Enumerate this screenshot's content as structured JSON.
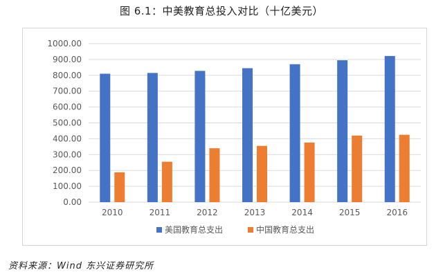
{
  "figure_title": "图 6.1：中美教育总投入对比（十亿美元）",
  "source_note": "资料来源：Wind 东兴证券研究所",
  "colors": {
    "us_series": "#4472c4",
    "cn_series": "#ed7d31",
    "gridline": "#d9d9d9",
    "axis_text": "#595959"
  },
  "chart_data": {
    "type": "bar",
    "title": "",
    "xlabel": "",
    "ylabel": "",
    "categories": [
      "2010",
      "2011",
      "2012",
      "2013",
      "2014",
      "2015",
      "2016"
    ],
    "series": [
      {
        "name": "美国教育总支出",
        "values": [
          810,
          815,
          828,
          845,
          870,
          895,
          922
        ]
      },
      {
        "name": "中国教育总支出",
        "values": [
          188,
          255,
          340,
          355,
          376,
          420,
          425
        ]
      }
    ],
    "ylim": [
      0,
      1000
    ],
    "yticks": [
      "0.00",
      "100.00",
      "200.00",
      "300.00",
      "400.00",
      "500.00",
      "600.00",
      "700.00",
      "800.00",
      "900.00",
      "1000.00"
    ],
    "grid": true,
    "legend_position": "bottom"
  }
}
